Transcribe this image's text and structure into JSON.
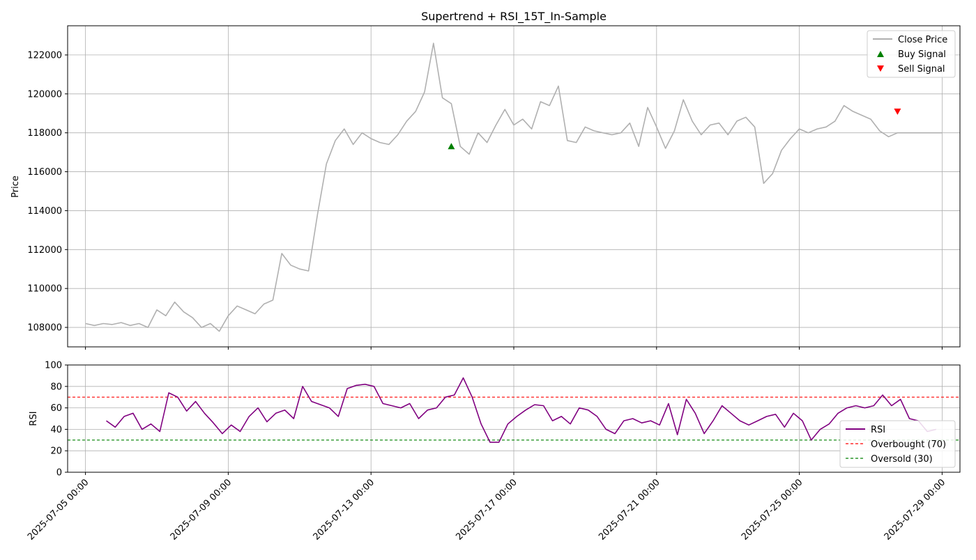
{
  "chart_data": [
    {
      "type": "line",
      "title": "Supertrend + RSI_15T_In-Sample",
      "xlabel": "",
      "ylabel": "Price",
      "ylim": [
        107000,
        123500
      ],
      "yticks": [
        108000,
        110000,
        112000,
        114000,
        116000,
        118000,
        120000,
        122000
      ],
      "x_range": [
        "2025-07-04 12:00",
        "2025-07-29 12:00"
      ],
      "grid": true,
      "legend_position": "upper-right",
      "series": [
        {
          "name": "Close Price",
          "color": "#b0b0b0",
          "x": [
            "2025-07-05 00:00",
            "2025-07-05 06:00",
            "2025-07-05 12:00",
            "2025-07-05 18:00",
            "2025-07-06 00:00",
            "2025-07-06 06:00",
            "2025-07-06 12:00",
            "2025-07-06 18:00",
            "2025-07-07 00:00",
            "2025-07-07 06:00",
            "2025-07-07 12:00",
            "2025-07-07 18:00",
            "2025-07-08 00:00",
            "2025-07-08 06:00",
            "2025-07-08 12:00",
            "2025-07-08 18:00",
            "2025-07-09 00:00",
            "2025-07-09 06:00",
            "2025-07-09 12:00",
            "2025-07-09 18:00",
            "2025-07-10 00:00",
            "2025-07-10 06:00",
            "2025-07-10 12:00",
            "2025-07-10 18:00",
            "2025-07-11 00:00",
            "2025-07-11 06:00",
            "2025-07-11 12:00",
            "2025-07-11 18:00",
            "2025-07-12 00:00",
            "2025-07-12 06:00",
            "2025-07-12 12:00",
            "2025-07-12 18:00",
            "2025-07-13 00:00",
            "2025-07-13 06:00",
            "2025-07-13 12:00",
            "2025-07-13 18:00",
            "2025-07-14 00:00",
            "2025-07-14 06:00",
            "2025-07-14 12:00",
            "2025-07-14 18:00",
            "2025-07-15 00:00",
            "2025-07-15 06:00",
            "2025-07-15 12:00",
            "2025-07-15 18:00",
            "2025-07-16 00:00",
            "2025-07-16 06:00",
            "2025-07-16 12:00",
            "2025-07-16 18:00",
            "2025-07-17 00:00",
            "2025-07-17 06:00",
            "2025-07-17 12:00",
            "2025-07-17 18:00",
            "2025-07-18 00:00",
            "2025-07-18 06:00",
            "2025-07-18 12:00",
            "2025-07-18 18:00",
            "2025-07-19 00:00",
            "2025-07-19 06:00",
            "2025-07-19 12:00",
            "2025-07-19 18:00",
            "2025-07-20 00:00",
            "2025-07-20 06:00",
            "2025-07-20 12:00",
            "2025-07-20 18:00",
            "2025-07-21 00:00",
            "2025-07-21 06:00",
            "2025-07-21 12:00",
            "2025-07-21 18:00",
            "2025-07-22 00:00",
            "2025-07-22 06:00",
            "2025-07-22 12:00",
            "2025-07-22 18:00",
            "2025-07-23 00:00",
            "2025-07-23 06:00",
            "2025-07-23 12:00",
            "2025-07-23 18:00",
            "2025-07-24 00:00",
            "2025-07-24 06:00",
            "2025-07-24 12:00",
            "2025-07-24 18:00",
            "2025-07-25 00:00",
            "2025-07-25 06:00",
            "2025-07-25 12:00",
            "2025-07-25 18:00",
            "2025-07-26 00:00",
            "2025-07-26 06:00",
            "2025-07-26 12:00",
            "2025-07-26 18:00",
            "2025-07-27 00:00",
            "2025-07-27 06:00",
            "2025-07-27 12:00",
            "2025-07-27 18:00",
            "2025-07-28 00:00",
            "2025-07-28 06:00",
            "2025-07-28 12:00",
            "2025-07-28 18:00",
            "2025-07-29 00:00"
          ],
          "y": [
            108200,
            108100,
            108200,
            108150,
            108250,
            108100,
            108200,
            108000,
            108900,
            108600,
            109300,
            108800,
            108500,
            108000,
            108200,
            107800,
            108600,
            109100,
            108900,
            108700,
            109200,
            109400,
            111800,
            111200,
            111000,
            110900,
            113800,
            116400,
            117600,
            118200,
            117400,
            118000,
            117700,
            117500,
            117400,
            117900,
            118600,
            119100,
            120100,
            122600,
            119800,
            119500,
            117300,
            116900,
            118000,
            117500,
            118400,
            119200,
            118400,
            118700,
            118200,
            119600,
            119400,
            120400,
            117600,
            117500,
            118300,
            118100,
            118000,
            117900,
            118000,
            118500,
            117300,
            119300,
            118300,
            117200,
            118100,
            119700,
            118600,
            117900,
            118400,
            118500,
            117900,
            118600,
            118800,
            118300,
            115400,
            115900,
            117100,
            117700,
            118200,
            118000,
            118200,
            118300,
            118600,
            119400,
            119100,
            118900,
            118700,
            118100,
            117800,
            118000,
            118000,
            118000,
            118000,
            118000,
            118000
          ]
        }
      ],
      "markers": [
        {
          "name": "Buy Signal",
          "symbol": "triangle-up",
          "color": "#008000",
          "x": "2025-07-15 06:00",
          "y": 117300
        },
        {
          "name": "Sell Signal",
          "symbol": "triangle-down",
          "color": "#ff0000",
          "x": "2025-07-27 18:00",
          "y": 119100
        }
      ]
    },
    {
      "type": "line",
      "title": "",
      "xlabel": "",
      "ylabel": "RSI",
      "ylim": [
        0,
        100
      ],
      "yticks": [
        0,
        20,
        40,
        60,
        80,
        100
      ],
      "x_range": [
        "2025-07-04 12:00",
        "2025-07-29 12:00"
      ],
      "xticks": [
        "2025-07-05 00:00",
        "2025-07-09 00:00",
        "2025-07-13 00:00",
        "2025-07-17 00:00",
        "2025-07-21 00:00",
        "2025-07-25 00:00",
        "2025-07-29 00:00"
      ],
      "grid": true,
      "legend_position": "lower-right",
      "series": [
        {
          "name": "RSI",
          "color": "#800080",
          "x": [
            "2025-07-05 14:00",
            "2025-07-05 20:00",
            "2025-07-06 02:00",
            "2025-07-06 08:00",
            "2025-07-06 14:00",
            "2025-07-06 20:00",
            "2025-07-07 02:00",
            "2025-07-07 08:00",
            "2025-07-07 14:00",
            "2025-07-07 20:00",
            "2025-07-08 02:00",
            "2025-07-08 08:00",
            "2025-07-08 14:00",
            "2025-07-08 20:00",
            "2025-07-09 02:00",
            "2025-07-09 08:00",
            "2025-07-09 14:00",
            "2025-07-09 20:00",
            "2025-07-10 02:00",
            "2025-07-10 08:00",
            "2025-07-10 14:00",
            "2025-07-10 20:00",
            "2025-07-11 02:00",
            "2025-07-11 08:00",
            "2025-07-11 14:00",
            "2025-07-11 20:00",
            "2025-07-12 02:00",
            "2025-07-12 08:00",
            "2025-07-12 14:00",
            "2025-07-12 20:00",
            "2025-07-13 02:00",
            "2025-07-13 08:00",
            "2025-07-13 14:00",
            "2025-07-13 20:00",
            "2025-07-14 02:00",
            "2025-07-14 08:00",
            "2025-07-14 14:00",
            "2025-07-14 20:00",
            "2025-07-15 02:00",
            "2025-07-15 08:00",
            "2025-07-15 14:00",
            "2025-07-15 20:00",
            "2025-07-16 02:00",
            "2025-07-16 08:00",
            "2025-07-16 14:00",
            "2025-07-16 20:00",
            "2025-07-17 02:00",
            "2025-07-17 08:00",
            "2025-07-17 14:00",
            "2025-07-17 20:00",
            "2025-07-18 02:00",
            "2025-07-18 08:00",
            "2025-07-18 14:00",
            "2025-07-18 20:00",
            "2025-07-19 02:00",
            "2025-07-19 08:00",
            "2025-07-19 14:00",
            "2025-07-19 20:00",
            "2025-07-20 02:00",
            "2025-07-20 08:00",
            "2025-07-20 14:00",
            "2025-07-20 20:00",
            "2025-07-21 02:00",
            "2025-07-21 08:00",
            "2025-07-21 14:00",
            "2025-07-21 20:00",
            "2025-07-22 02:00",
            "2025-07-22 08:00",
            "2025-07-22 14:00",
            "2025-07-22 20:00",
            "2025-07-23 02:00",
            "2025-07-23 08:00",
            "2025-07-23 14:00",
            "2025-07-23 20:00",
            "2025-07-24 02:00",
            "2025-07-24 08:00",
            "2025-07-24 14:00",
            "2025-07-24 20:00",
            "2025-07-25 02:00",
            "2025-07-25 08:00",
            "2025-07-25 14:00",
            "2025-07-25 20:00",
            "2025-07-26 02:00",
            "2025-07-26 08:00",
            "2025-07-26 14:00",
            "2025-07-26 20:00",
            "2025-07-27 02:00",
            "2025-07-27 08:00",
            "2025-07-27 14:00",
            "2025-07-27 20:00",
            "2025-07-28 02:00",
            "2025-07-28 08:00",
            "2025-07-28 14:00",
            "2025-07-28 20:00"
          ],
          "y": [
            48,
            42,
            52,
            55,
            40,
            45,
            38,
            74,
            70,
            57,
            66,
            55,
            46,
            36,
            44,
            38,
            52,
            60,
            47,
            55,
            58,
            50,
            80,
            66,
            63,
            60,
            52,
            78,
            81,
            82,
            80,
            64,
            62,
            60,
            64,
            50,
            58,
            60,
            70,
            72,
            88,
            70,
            45,
            28,
            28,
            45,
            52,
            58,
            63,
            62,
            48,
            52,
            45,
            60,
            58,
            52,
            40,
            36,
            48,
            50,
            46,
            48,
            44,
            64,
            35,
            68,
            55,
            36,
            48,
            62,
            55,
            48,
            44,
            48,
            52,
            54,
            42,
            55,
            48,
            30,
            40,
            45,
            55,
            60,
            62,
            60,
            62,
            72,
            62,
            68,
            50,
            48,
            38,
            40
          ]
        }
      ],
      "reference_lines": [
        {
          "name": "Overbought (70)",
          "y": 70,
          "color": "#ff0000",
          "style": "dashed"
        },
        {
          "name": "Oversold (30)",
          "y": 30,
          "color": "#008000",
          "style": "dashed"
        }
      ]
    }
  ]
}
